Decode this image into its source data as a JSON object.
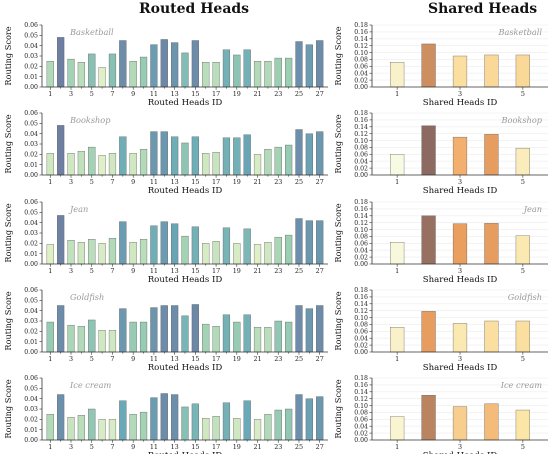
{
  "figure": {
    "left_title": "Routed Heads",
    "right_title": "Shared Heads"
  },
  "colors": {
    "routed_ramp": [
      "#e6f2c8",
      "#9ccfb2",
      "#6aa9b8",
      "#6e7fa2"
    ],
    "shared_ramp": [
      "#f8fbe3",
      "#fbe5a6",
      "#f0a25f",
      "#8c6a62"
    ],
    "axis": "#333333",
    "label_italic": "#9a9a9a"
  },
  "chart_data": [
    {
      "type": "bar",
      "panel": "routed",
      "annotation": "Basketball",
      "ylabel": "Routing Score",
      "xlabel": "Routed Heads ID",
      "ylim": [
        0,
        0.06
      ],
      "yticks": [
        "0.00",
        "0.01",
        "0.02",
        "0.03",
        "0.04",
        "0.05",
        "0.06"
      ],
      "categories": [
        1,
        2,
        3,
        4,
        5,
        6,
        7,
        8,
        9,
        10,
        11,
        12,
        13,
        14,
        15,
        16,
        17,
        18,
        19,
        20,
        21,
        22,
        23,
        24,
        25,
        26,
        27
      ],
      "xticks": [
        "1",
        "3",
        "5",
        "7",
        "9",
        "11",
        "13",
        "15",
        "17",
        "19",
        "21",
        "23",
        "25",
        "27"
      ],
      "values": [
        0.025,
        0.048,
        0.027,
        0.024,
        0.032,
        0.019,
        0.032,
        0.045,
        0.025,
        0.029,
        0.041,
        0.046,
        0.043,
        0.033,
        0.045,
        0.024,
        0.024,
        0.036,
        0.031,
        0.036,
        0.025,
        0.025,
        0.028,
        0.028,
        0.044,
        0.041,
        0.045
      ]
    },
    {
      "type": "bar",
      "panel": "routed",
      "annotation": "Bookshop",
      "ylabel": "Routing Score",
      "xlabel": "Routed Heads ID",
      "ylim": [
        0,
        0.06
      ],
      "yticks": [
        "0.00",
        "0.01",
        "0.02",
        "0.03",
        "0.04",
        "0.05",
        "0.06"
      ],
      "categories": [
        1,
        2,
        3,
        4,
        5,
        6,
        7,
        8,
        9,
        10,
        11,
        12,
        13,
        14,
        15,
        16,
        17,
        18,
        19,
        20,
        21,
        22,
        23,
        24,
        25,
        26,
        27
      ],
      "xticks": [
        "1",
        "3",
        "5",
        "7",
        "9",
        "11",
        "13",
        "15",
        "17",
        "19",
        "21",
        "23",
        "25",
        "27"
      ],
      "values": [
        0.021,
        0.048,
        0.021,
        0.023,
        0.027,
        0.019,
        0.021,
        0.037,
        0.021,
        0.025,
        0.042,
        0.042,
        0.037,
        0.031,
        0.037,
        0.021,
        0.022,
        0.036,
        0.036,
        0.039,
        0.02,
        0.025,
        0.027,
        0.029,
        0.044,
        0.04,
        0.042
      ]
    },
    {
      "type": "bar",
      "panel": "routed",
      "annotation": "Jean",
      "ylabel": "Routing Score",
      "xlabel": "Routed Heads ID",
      "ylim": [
        0,
        0.06
      ],
      "yticks": [
        "0.00",
        "0.01",
        "0.02",
        "0.03",
        "0.04",
        "0.05",
        "0.06"
      ],
      "categories": [
        1,
        2,
        3,
        4,
        5,
        6,
        7,
        8,
        9,
        10,
        11,
        12,
        13,
        14,
        15,
        16,
        17,
        18,
        19,
        20,
        21,
        22,
        23,
        24,
        25,
        26,
        27
      ],
      "xticks": [
        "1",
        "3",
        "5",
        "7",
        "9",
        "11",
        "13",
        "15",
        "17",
        "19",
        "21",
        "23",
        "25",
        "27"
      ],
      "values": [
        0.019,
        0.047,
        0.023,
        0.021,
        0.024,
        0.02,
        0.025,
        0.041,
        0.021,
        0.024,
        0.037,
        0.041,
        0.039,
        0.027,
        0.036,
        0.02,
        0.022,
        0.035,
        0.02,
        0.034,
        0.019,
        0.021,
        0.026,
        0.028,
        0.044,
        0.042,
        0.042
      ]
    },
    {
      "type": "bar",
      "panel": "routed",
      "annotation": "Goldfish",
      "ylabel": "Routing Score",
      "xlabel": "Routed Heads ID",
      "ylim": [
        0,
        0.06
      ],
      "yticks": [
        "0.00",
        "0.01",
        "0.02",
        "0.03",
        "0.04",
        "0.05",
        "0.06"
      ],
      "categories": [
        1,
        2,
        3,
        4,
        5,
        6,
        7,
        8,
        9,
        10,
        11,
        12,
        13,
        14,
        15,
        16,
        17,
        18,
        19,
        20,
        21,
        22,
        23,
        24,
        25,
        26,
        27
      ],
      "xticks": [
        "1",
        "3",
        "5",
        "7",
        "9",
        "11",
        "13",
        "15",
        "17",
        "19",
        "21",
        "23",
        "25",
        "27"
      ],
      "values": [
        0.029,
        0.045,
        0.026,
        0.025,
        0.031,
        0.021,
        0.021,
        0.042,
        0.029,
        0.029,
        0.043,
        0.045,
        0.045,
        0.035,
        0.046,
        0.027,
        0.025,
        0.036,
        0.029,
        0.036,
        0.024,
        0.024,
        0.03,
        0.029,
        0.045,
        0.042,
        0.045
      ]
    },
    {
      "type": "bar",
      "panel": "routed",
      "annotation": "Ice cream",
      "ylabel": "Routing Score",
      "xlabel": "Routed Heads ID",
      "ylim": [
        0,
        0.06
      ],
      "yticks": [
        "0.00",
        "0.01",
        "0.02",
        "0.03",
        "0.04",
        "0.05",
        "0.06"
      ],
      "categories": [
        1,
        2,
        3,
        4,
        5,
        6,
        7,
        8,
        9,
        10,
        11,
        12,
        13,
        14,
        15,
        16,
        17,
        18,
        19,
        20,
        21,
        22,
        23,
        24,
        25,
        26,
        27
      ],
      "xticks": [
        "1",
        "3",
        "5",
        "7",
        "9",
        "11",
        "13",
        "15",
        "17",
        "19",
        "21",
        "23",
        "25",
        "27"
      ],
      "values": [
        0.025,
        0.044,
        0.022,
        0.024,
        0.03,
        0.02,
        0.02,
        0.038,
        0.025,
        0.027,
        0.041,
        0.045,
        0.044,
        0.032,
        0.035,
        0.021,
        0.023,
        0.036,
        0.021,
        0.038,
        0.02,
        0.025,
        0.029,
        0.03,
        0.044,
        0.04,
        0.042
      ]
    },
    {
      "type": "bar",
      "panel": "shared",
      "annotation": "Basketball",
      "ylabel": "Routing Score",
      "xlabel": "Shared Heads ID",
      "ylim": [
        0,
        0.18
      ],
      "yticks": [
        "0.00",
        "0.02",
        "0.04",
        "0.06",
        "0.08",
        "0.10",
        "0.12",
        "0.14",
        "0.16",
        "0.18"
      ],
      "categories": [
        1,
        2,
        3,
        4,
        5
      ],
      "xticks": [
        "1",
        "3",
        "5"
      ],
      "values": [
        0.072,
        0.125,
        0.09,
        0.093,
        0.093
      ]
    },
    {
      "type": "bar",
      "panel": "shared",
      "annotation": "Bookshop",
      "ylabel": "Routing Score",
      "xlabel": "Shared Heads ID",
      "ylim": [
        0,
        0.18
      ],
      "yticks": [
        "0.00",
        "0.02",
        "0.04",
        "0.06",
        "0.08",
        "0.10",
        "0.12",
        "0.14",
        "0.16",
        "0.18"
      ],
      "categories": [
        1,
        2,
        3,
        4,
        5
      ],
      "xticks": [
        "1",
        "3",
        "5"
      ],
      "values": [
        0.06,
        0.143,
        0.11,
        0.118,
        0.078
      ]
    },
    {
      "type": "bar",
      "panel": "shared",
      "annotation": "Jean",
      "ylabel": "Routing Score",
      "xlabel": "Shared Heads ID",
      "ylim": [
        0,
        0.18
      ],
      "yticks": [
        "0.00",
        "0.02",
        "0.04",
        "0.06",
        "0.08",
        "0.10",
        "0.12",
        "0.14",
        "0.16",
        "0.18"
      ],
      "categories": [
        1,
        2,
        3,
        4,
        5
      ],
      "xticks": [
        "1",
        "3",
        "5"
      ],
      "values": [
        0.063,
        0.14,
        0.117,
        0.118,
        0.082
      ]
    },
    {
      "type": "bar",
      "panel": "shared",
      "annotation": "Goldfish",
      "ylabel": "Routing Score",
      "xlabel": "Shared Heads ID",
      "ylim": [
        0,
        0.18
      ],
      "yticks": [
        "0.00",
        "0.02",
        "0.04",
        "0.06",
        "0.08",
        "0.10",
        "0.12",
        "0.14",
        "0.16",
        "0.18"
      ],
      "categories": [
        1,
        2,
        3,
        4,
        5
      ],
      "xticks": [
        "1",
        "3",
        "5"
      ],
      "values": [
        0.072,
        0.118,
        0.083,
        0.09,
        0.09
      ]
    },
    {
      "type": "bar",
      "panel": "shared",
      "annotation": "Ice cream",
      "ylabel": "Routing Score",
      "xlabel": "Shared Heads ID",
      "ylim": [
        0,
        0.18
      ],
      "yticks": [
        "0.00",
        "0.02",
        "0.04",
        "0.06",
        "0.08",
        "0.10",
        "0.12",
        "0.14",
        "0.16",
        "0.18"
      ],
      "categories": [
        1,
        2,
        3,
        4,
        5
      ],
      "xticks": [
        "1",
        "3",
        "5"
      ],
      "values": [
        0.068,
        0.13,
        0.097,
        0.105,
        0.087
      ]
    }
  ]
}
